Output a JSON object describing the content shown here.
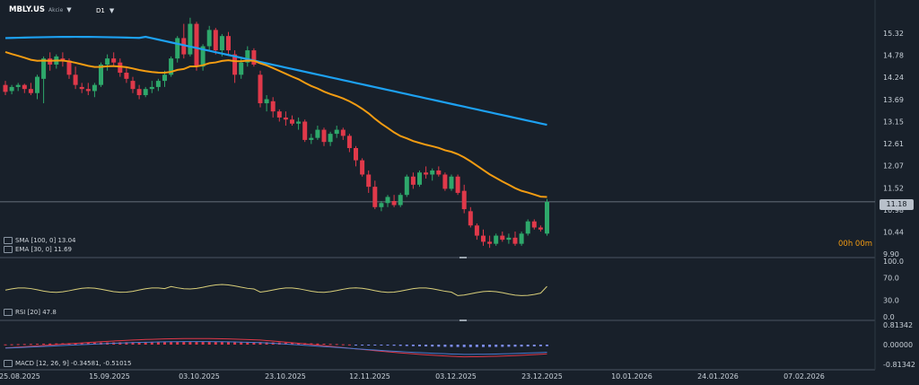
{
  "header": {
    "symbol": "MBLY.US",
    "symbol_sub": "Akcie",
    "timeframe": "D1"
  },
  "indicators": {
    "sma_label": "SMA [100, 0] 13.04",
    "ema_label": "EMA [30, 0] 11.69",
    "rsi_label": "RSI [20] 47.8",
    "macd_label": "MACD [12, 26, 9] -0.34581, -0.51015"
  },
  "last_price": "11.18",
  "timer": "00h 00m",
  "colors": {
    "up": "#2ea86b",
    "down": "#e0394a",
    "sma": "#1da1f2",
    "ema": "#f39c12",
    "rsi": "#d9cf7a",
    "hist_pos": "#e0394a",
    "hist_neg": "#7c8cf0"
  },
  "chart_data": {
    "type": "candlestick",
    "price_axis": {
      "ticks": [
        "15.32",
        "14.78",
        "14.24",
        "13.69",
        "13.15",
        "12.61",
        "12.07",
        "11.52",
        "10.98",
        "10.44",
        "9.90"
      ]
    },
    "rsi_axis": {
      "ticks": [
        "100.0",
        "70.0",
        "30.0",
        "0.0"
      ]
    },
    "macd_axis": {
      "ticks": [
        "0.81342",
        "0.00000",
        "-0.81342"
      ]
    },
    "x_ticks": [
      "25.08.2025",
      "15.09.2025",
      "03.10.2025",
      "23.10.2025",
      "12.11.2025",
      "03.12.2025",
      "23.12.2025",
      "10.01.2026",
      "24.01.2026",
      "07.02.2026"
    ],
    "candles": [
      [
        14.05,
        14.15,
        13.8,
        13.88
      ],
      [
        13.9,
        14.05,
        13.82,
        14.0
      ],
      [
        14.0,
        14.1,
        13.9,
        14.05
      ],
      [
        14.05,
        14.08,
        13.85,
        13.95
      ],
      [
        13.95,
        14.1,
        13.8,
        13.85
      ],
      [
        13.85,
        14.3,
        13.7,
        14.25
      ],
      [
        14.2,
        14.75,
        13.6,
        14.7
      ],
      [
        14.7,
        14.85,
        14.4,
        14.55
      ],
      [
        14.55,
        14.8,
        14.45,
        14.75
      ],
      [
        14.7,
        14.85,
        14.5,
        14.65
      ],
      [
        14.65,
        14.7,
        14.2,
        14.3
      ],
      [
        14.3,
        14.5,
        13.95,
        14.05
      ],
      [
        14.0,
        14.1,
        13.85,
        13.95
      ],
      [
        13.95,
        14.1,
        13.8,
        13.9
      ],
      [
        13.9,
        14.1,
        13.75,
        14.05
      ],
      [
        14.05,
        14.6,
        14.0,
        14.55
      ],
      [
        14.55,
        14.8,
        14.4,
        14.7
      ],
      [
        14.7,
        14.85,
        14.5,
        14.6
      ],
      [
        14.6,
        14.7,
        14.25,
        14.35
      ],
      [
        14.35,
        14.5,
        14.1,
        14.2
      ],
      [
        14.15,
        14.25,
        13.85,
        13.95
      ],
      [
        13.95,
        14.05,
        13.7,
        13.8
      ],
      [
        13.8,
        14.0,
        13.75,
        13.95
      ],
      [
        13.95,
        14.15,
        13.85,
        14.0
      ],
      [
        14.0,
        14.2,
        13.9,
        14.15
      ],
      [
        14.15,
        14.4,
        14.0,
        14.3
      ],
      [
        14.3,
        14.75,
        14.25,
        14.7
      ],
      [
        14.7,
        15.25,
        14.6,
        15.2
      ],
      [
        15.2,
        15.55,
        14.7,
        14.8
      ],
      [
        14.8,
        15.7,
        14.75,
        15.55
      ],
      [
        15.55,
        15.6,
        14.4,
        14.5
      ],
      [
        14.5,
        15.05,
        14.4,
        15.0
      ],
      [
        15.0,
        15.5,
        14.9,
        15.4
      ],
      [
        15.4,
        15.45,
        14.8,
        14.9
      ],
      [
        14.9,
        15.3,
        14.75,
        15.25
      ],
      [
        15.25,
        15.35,
        14.8,
        14.9
      ],
      [
        14.8,
        14.9,
        14.1,
        14.3
      ],
      [
        14.3,
        14.7,
        14.2,
        14.6
      ],
      [
        14.6,
        15.0,
        14.5,
        14.9
      ],
      [
        14.9,
        14.95,
        14.5,
        14.55
      ],
      [
        14.3,
        14.4,
        13.5,
        13.6
      ],
      [
        13.6,
        13.8,
        13.4,
        13.7
      ],
      [
        13.65,
        13.75,
        13.25,
        13.4
      ],
      [
        13.4,
        13.45,
        13.15,
        13.25
      ],
      [
        13.25,
        13.4,
        13.05,
        13.2
      ],
      [
        13.2,
        13.3,
        13.05,
        13.1
      ],
      [
        13.1,
        13.25,
        12.95,
        13.15
      ],
      [
        13.15,
        13.2,
        12.65,
        12.7
      ],
      [
        12.7,
        12.85,
        12.6,
        12.75
      ],
      [
        12.75,
        13.05,
        12.7,
        12.95
      ],
      [
        12.95,
        13.0,
        12.55,
        12.65
      ],
      [
        12.65,
        12.9,
        12.55,
        12.85
      ],
      [
        12.85,
        13.05,
        12.75,
        12.95
      ],
      [
        12.95,
        13.0,
        12.7,
        12.8
      ],
      [
        12.8,
        12.85,
        12.4,
        12.5
      ],
      [
        12.5,
        12.55,
        12.05,
        12.2
      ],
      [
        12.2,
        12.25,
        11.8,
        11.85
      ],
      [
        11.85,
        11.95,
        11.4,
        11.55
      ],
      [
        11.55,
        11.7,
        11.0,
        11.05
      ],
      [
        11.05,
        11.2,
        10.95,
        11.15
      ],
      [
        11.15,
        11.35,
        11.05,
        11.3
      ],
      [
        11.2,
        11.35,
        11.05,
        11.1
      ],
      [
        11.1,
        11.4,
        11.05,
        11.35
      ],
      [
        11.35,
        11.85,
        11.3,
        11.8
      ],
      [
        11.8,
        11.9,
        11.5,
        11.6
      ],
      [
        11.6,
        11.95,
        11.55,
        11.9
      ],
      [
        11.9,
        12.05,
        11.75,
        11.85
      ],
      [
        11.85,
        12.0,
        11.7,
        11.95
      ],
      [
        11.95,
        12.05,
        11.8,
        11.85
      ],
      [
        11.85,
        11.9,
        11.45,
        11.5
      ],
      [
        11.5,
        11.85,
        11.45,
        11.8
      ],
      [
        11.8,
        11.85,
        11.35,
        11.4
      ],
      [
        11.45,
        11.6,
        10.9,
        11.0
      ],
      [
        10.95,
        11.05,
        10.55,
        10.6
      ],
      [
        10.6,
        10.65,
        10.25,
        10.35
      ],
      [
        10.35,
        10.5,
        10.1,
        10.2
      ],
      [
        10.2,
        10.35,
        10.05,
        10.15
      ],
      [
        10.15,
        10.4,
        10.1,
        10.35
      ],
      [
        10.35,
        10.45,
        10.2,
        10.25
      ],
      [
        10.25,
        10.4,
        10.15,
        10.3
      ],
      [
        10.3,
        10.45,
        10.1,
        10.15
      ],
      [
        10.15,
        10.45,
        10.1,
        10.4
      ],
      [
        10.4,
        10.75,
        10.35,
        10.7
      ],
      [
        10.7,
        10.75,
        10.5,
        10.55
      ],
      [
        10.55,
        10.6,
        10.45,
        10.5
      ],
      [
        10.4,
        11.25,
        10.35,
        11.18
      ]
    ]
  }
}
